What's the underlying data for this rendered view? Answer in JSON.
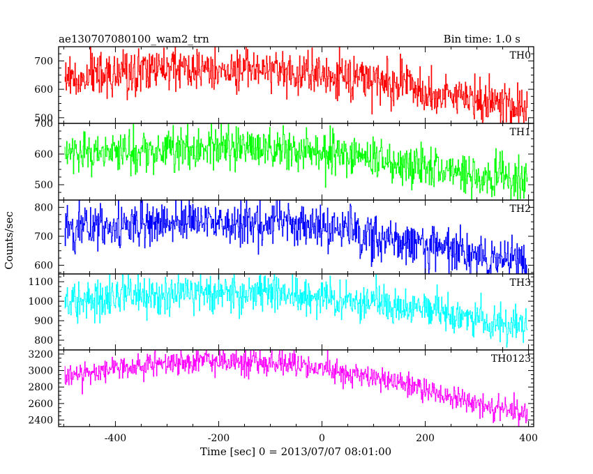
{
  "header": {
    "title": "ae130707080100_wam2_trn",
    "bin_time": "Bin time: 1.0 s"
  },
  "axes": {
    "xlabel": "Time [sec] 0 = 2013/07/07 08:01:00",
    "ylabel": "Counts/sec"
  },
  "chart_data": {
    "type": "line",
    "title": "ae130707080100_wam2_trn",
    "subtitle": "Bin time: 1.0 s",
    "xlabel": "Time [sec] 0 = 2013/07/07 08:01:00",
    "ylabel": "Counts/sec",
    "xlim": [
      -510,
      410
    ],
    "x_ticks": [
      -400,
      -200,
      0,
      200,
      400
    ],
    "x_range": [
      -498,
      398
    ],
    "x_step": 1,
    "grid": false,
    "legend": "none",
    "panels": [
      {
        "name": "TH0",
        "color": "#ff0000",
        "ylim": [
          480,
          750
        ],
        "y_ticks": [
          500,
          600,
          700
        ],
        "noise": 38,
        "trend": [
          [
            -498,
            638
          ],
          [
            -400,
            660
          ],
          [
            -300,
            672
          ],
          [
            -200,
            670
          ],
          [
            -100,
            665
          ],
          [
            0,
            655
          ],
          [
            100,
            630
          ],
          [
            200,
            600
          ],
          [
            300,
            560
          ],
          [
            398,
            535
          ]
        ]
      },
      {
        "name": "TH1",
        "color": "#00ff00",
        "ylim": [
          450,
          700
        ],
        "y_ticks": [
          500,
          600,
          700
        ],
        "noise": 33,
        "trend": [
          [
            -498,
            600
          ],
          [
            -400,
            610
          ],
          [
            -300,
            617
          ],
          [
            -200,
            622
          ],
          [
            -100,
            618
          ],
          [
            0,
            605
          ],
          [
            100,
            585
          ],
          [
            200,
            560
          ],
          [
            300,
            530
          ],
          [
            398,
            508
          ]
        ]
      },
      {
        "name": "TH2",
        "color": "#0000ff",
        "ylim": [
          570,
          825
        ],
        "y_ticks": [
          600,
          700,
          800
        ],
        "noise": 38,
        "trend": [
          [
            -498,
            715
          ],
          [
            -400,
            735
          ],
          [
            -300,
            748
          ],
          [
            -200,
            752
          ],
          [
            -100,
            745
          ],
          [
            0,
            725
          ],
          [
            100,
            698
          ],
          [
            200,
            668
          ],
          [
            300,
            632
          ],
          [
            398,
            610
          ]
        ]
      },
      {
        "name": "TH3",
        "color": "#00ffff",
        "ylim": [
          750,
          1140
        ],
        "y_ticks": [
          800,
          900,
          1000,
          1100
        ],
        "noise": 50,
        "trend": [
          [
            -498,
            1000
          ],
          [
            -400,
            1025
          ],
          [
            -300,
            1040
          ],
          [
            -200,
            1045
          ],
          [
            -100,
            1038
          ],
          [
            0,
            1020
          ],
          [
            100,
            990
          ],
          [
            200,
            955
          ],
          [
            300,
            910
          ],
          [
            398,
            860
          ]
        ]
      },
      {
        "name": "TH0123",
        "color": "#ff00ff",
        "ylim": [
          2320,
          3250
        ],
        "y_ticks": [
          2400,
          2600,
          2800,
          3000,
          3200
        ],
        "noise": 75,
        "trend": [
          [
            -498,
            2910
          ],
          [
            -400,
            3030
          ],
          [
            -300,
            3100
          ],
          [
            -200,
            3130
          ],
          [
            -100,
            3110
          ],
          [
            0,
            3030
          ],
          [
            100,
            2920
          ],
          [
            200,
            2750
          ],
          [
            300,
            2600
          ],
          [
            398,
            2470
          ]
        ]
      }
    ]
  }
}
